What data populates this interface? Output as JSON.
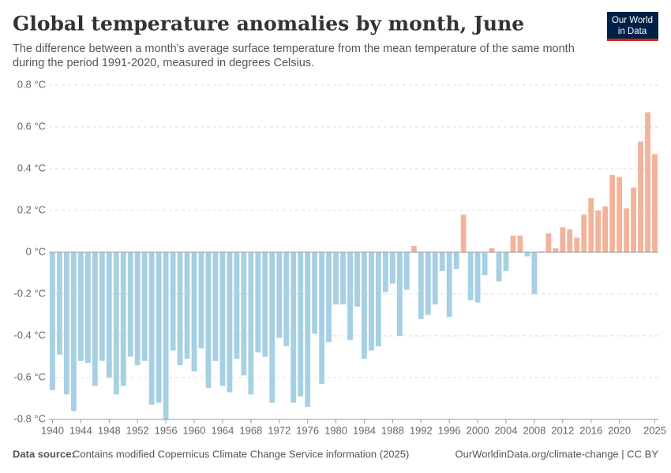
{
  "chart_data": {
    "type": "bar",
    "title": "Global temperature anomalies by month, June",
    "subtitle": [
      "The difference between a month's average surface temperature from the mean temperature of the same month",
      "during the period 1991-2020, measured in degrees Celsius."
    ],
    "logo": [
      "Our World",
      "in Data"
    ],
    "source_label": "Data source:",
    "source": "Contains modified Copernicus Climate Change Service information (2025)",
    "footer_right": "OurWorldinData.org/climate-change | CC BY",
    "x": [
      1940,
      1941,
      1942,
      1943,
      1944,
      1945,
      1946,
      1947,
      1948,
      1949,
      1950,
      1951,
      1952,
      1953,
      1954,
      1955,
      1956,
      1957,
      1958,
      1959,
      1960,
      1961,
      1962,
      1963,
      1964,
      1965,
      1966,
      1967,
      1968,
      1969,
      1970,
      1971,
      1972,
      1973,
      1974,
      1975,
      1976,
      1977,
      1978,
      1979,
      1980,
      1981,
      1982,
      1983,
      1984,
      1985,
      1986,
      1987,
      1988,
      1989,
      1990,
      1991,
      1992,
      1993,
      1994,
      1995,
      1996,
      1997,
      1998,
      1999,
      2000,
      2001,
      2002,
      2003,
      2004,
      2005,
      2006,
      2007,
      2008,
      2009,
      2010,
      2011,
      2012,
      2013,
      2014,
      2015,
      2016,
      2017,
      2018,
      2019,
      2020,
      2021,
      2022,
      2023,
      2024,
      2025
    ],
    "values": [
      -0.66,
      -0.49,
      -0.68,
      -0.76,
      -0.52,
      -0.53,
      -0.64,
      -0.52,
      -0.6,
      -0.68,
      -0.64,
      -0.5,
      -0.54,
      -0.52,
      -0.73,
      -0.72,
      -0.8,
      -0.47,
      -0.54,
      -0.51,
      -0.57,
      -0.46,
      -0.65,
      -0.52,
      -0.64,
      -0.67,
      -0.51,
      -0.59,
      -0.68,
      -0.48,
      -0.5,
      -0.72,
      -0.41,
      -0.45,
      -0.72,
      -0.69,
      -0.74,
      -0.39,
      -0.63,
      -0.43,
      -0.25,
      -0.25,
      -0.42,
      -0.26,
      -0.51,
      -0.47,
      -0.45,
      -0.19,
      -0.15,
      -0.4,
      -0.18,
      0.03,
      -0.32,
      -0.3,
      -0.25,
      -0.09,
      -0.31,
      -0.08,
      0.18,
      -0.23,
      -0.24,
      -0.11,
      0.02,
      -0.14,
      -0.09,
      0.08,
      0.08,
      -0.02,
      -0.2,
      0.005,
      0.09,
      0.02,
      0.12,
      0.11,
      0.07,
      0.18,
      0.26,
      0.2,
      0.22,
      0.37,
      0.36,
      0.21,
      0.31,
      0.53,
      0.67,
      0.47
    ],
    "positive_color": "#f3b39b",
    "negative_color": "#a6d0e3",
    "ylim": [
      -0.8,
      0.8
    ],
    "yticks": [
      {
        "value": -0.8,
        "label": "-0.8 °C"
      },
      {
        "value": -0.6,
        "label": "-0.6 °C"
      },
      {
        "value": -0.4,
        "label": "-0.4 °C"
      },
      {
        "value": -0.2,
        "label": "-0.2 °C"
      },
      {
        "value": 0,
        "label": "0 °C"
      },
      {
        "value": 0.2,
        "label": "0.2 °C"
      },
      {
        "value": 0.4,
        "label": "0.4 °C"
      },
      {
        "value": 0.6,
        "label": "0.6 °C"
      },
      {
        "value": 0.8,
        "label": "0.8 °C"
      }
    ],
    "xticks": [
      1940,
      1944,
      1948,
      1952,
      1956,
      1960,
      1964,
      1968,
      1972,
      1976,
      1980,
      1984,
      1988,
      1992,
      1996,
      2000,
      2004,
      2008,
      2012,
      2016,
      2020,
      2025
    ],
    "grid": true
  }
}
